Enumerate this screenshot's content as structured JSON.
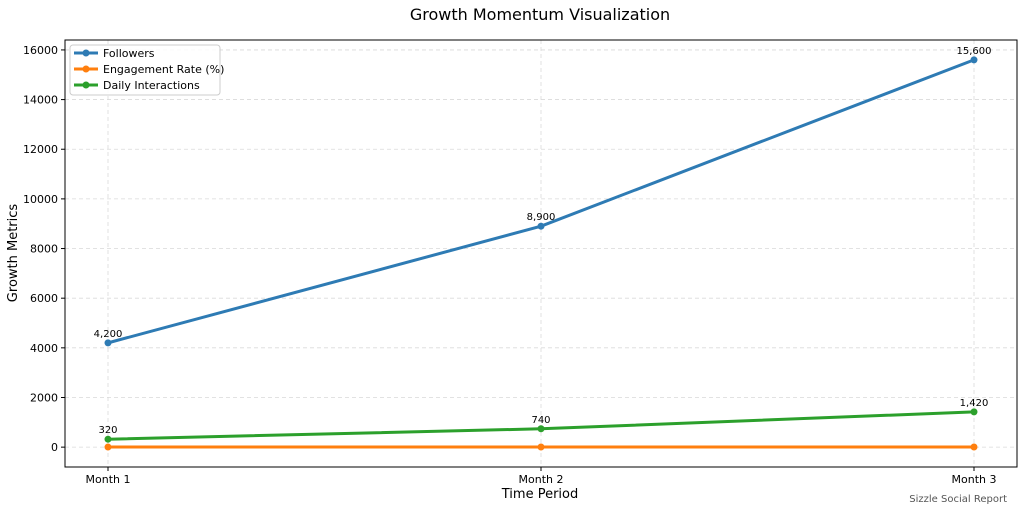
{
  "chart_data": {
    "type": "line",
    "title": "Growth Momentum Visualization",
    "xlabel": "Time Period",
    "ylabel": "Growth Metrics",
    "categories": [
      "Month 1",
      "Month 2",
      "Month 3"
    ],
    "ylim": [
      -800,
      16400
    ],
    "yticks": [
      0,
      2000,
      4000,
      6000,
      8000,
      10000,
      12000,
      14000,
      16000
    ],
    "grid": true,
    "legend_position": "top-left",
    "series": [
      {
        "name": "Followers",
        "values": [
          4200,
          8900,
          15600
        ],
        "color": "#2e7bb4",
        "labels": [
          "4,200",
          "8,900",
          "15,600"
        ]
      },
      {
        "name": "Engagement Rate (%)",
        "values": [
          3.5,
          4.2,
          5.1
        ],
        "color": "#ff7f0e",
        "labels": []
      },
      {
        "name": "Daily Interactions",
        "values": [
          320,
          740,
          1420
        ],
        "color": "#2ca02c",
        "labels": [
          "320",
          "740",
          "1,420"
        ]
      }
    ],
    "footnote": "Sizzle Social Report"
  }
}
